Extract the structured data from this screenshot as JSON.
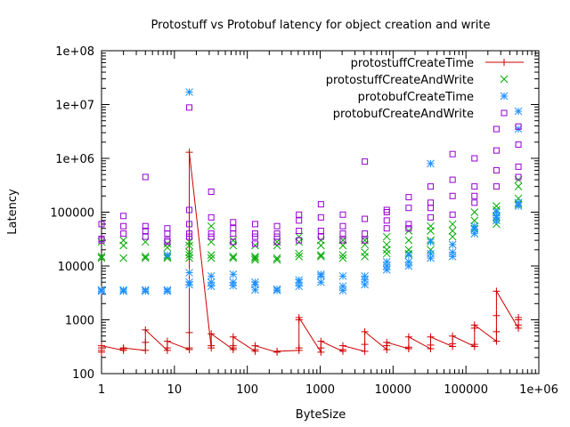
{
  "chart_data": {
    "type": "scatter",
    "title": "Protostuff vs Protobuf latency for object creation and write",
    "xlabel": "ByteSize",
    "ylabel": "Latency",
    "xscale": "log",
    "yscale": "log",
    "xlim": [
      1,
      1000000
    ],
    "ylim": [
      100,
      100000000
    ],
    "grid": false,
    "legend_position": "top-right",
    "x_tick_labels": [
      "1",
      "10",
      "100",
      "1000",
      "10000",
      "100000",
      "1e+06"
    ],
    "y_tick_labels": [
      "100",
      "1000",
      "10000",
      "100000",
      "1e+06",
      "1e+07",
      "1e+08"
    ],
    "series": [
      {
        "name": "protostuffCreateTime",
        "style": "linespoints",
        "marker": "plus",
        "color": "#cc0000",
        "points": [
          [
            1,
            250
          ],
          [
            1,
            270
          ],
          [
            1,
            300
          ],
          [
            1,
            330
          ],
          [
            2,
            270
          ],
          [
            2,
            290
          ],
          [
            2,
            300
          ],
          [
            4,
            270
          ],
          [
            4,
            380
          ],
          [
            4,
            650
          ],
          [
            8,
            270
          ],
          [
            8,
            300
          ],
          [
            8,
            400
          ],
          [
            16,
            280
          ],
          [
            16,
            300
          ],
          [
            16,
            580
          ],
          [
            16,
            1300000
          ],
          [
            32,
            300
          ],
          [
            32,
            330
          ],
          [
            32,
            550
          ],
          [
            64,
            280
          ],
          [
            64,
            300
          ],
          [
            64,
            330
          ],
          [
            64,
            480
          ],
          [
            128,
            260
          ],
          [
            128,
            280
          ],
          [
            128,
            330
          ],
          [
            256,
            250
          ],
          [
            256,
            260
          ],
          [
            512,
            270
          ],
          [
            512,
            300
          ],
          [
            512,
            1000
          ],
          [
            512,
            1100
          ],
          [
            1024,
            250
          ],
          [
            1024,
            300
          ],
          [
            1024,
            400
          ],
          [
            2048,
            260
          ],
          [
            2048,
            280
          ],
          [
            2048,
            330
          ],
          [
            4096,
            260
          ],
          [
            4096,
            350
          ],
          [
            4096,
            600
          ],
          [
            8192,
            280
          ],
          [
            8192,
            330
          ],
          [
            8192,
            380
          ],
          [
            16384,
            290
          ],
          [
            16384,
            310
          ],
          [
            16384,
            480
          ],
          [
            32768,
            290
          ],
          [
            32768,
            340
          ],
          [
            32768,
            480
          ],
          [
            65536,
            320
          ],
          [
            65536,
            360
          ],
          [
            65536,
            500
          ],
          [
            131072,
            320
          ],
          [
            131072,
            350
          ],
          [
            131072,
            700
          ],
          [
            131072,
            800
          ],
          [
            262144,
            400
          ],
          [
            262144,
            600
          ],
          [
            262144,
            1200
          ],
          [
            262144,
            3400
          ],
          [
            524288,
            700
          ],
          [
            524288,
            800
          ],
          [
            524288,
            1000
          ],
          [
            524288,
            1100
          ]
        ]
      },
      {
        "name": "protostuffCreateAndWrite",
        "style": "points",
        "marker": "x",
        "color": "#00aa00",
        "points": [
          [
            1,
            14000
          ],
          [
            1,
            15000
          ],
          [
            1,
            28000
          ],
          [
            2,
            14000
          ],
          [
            2,
            24000
          ],
          [
            2,
            30000
          ],
          [
            4,
            14000
          ],
          [
            4,
            15000
          ],
          [
            4,
            28000
          ],
          [
            8,
            14000
          ],
          [
            8,
            15000
          ],
          [
            8,
            22000
          ],
          [
            8,
            26000
          ],
          [
            16,
            14000
          ],
          [
            16,
            16000
          ],
          [
            16,
            18000
          ],
          [
            16,
            24000
          ],
          [
            16,
            28000
          ],
          [
            32,
            14000
          ],
          [
            32,
            16000
          ],
          [
            32,
            28000
          ],
          [
            32,
            55000
          ],
          [
            64,
            14000
          ],
          [
            64,
            15000
          ],
          [
            64,
            24000
          ],
          [
            64,
            30000
          ],
          [
            128,
            13000
          ],
          [
            128,
            14000
          ],
          [
            128,
            15000
          ],
          [
            128,
            24000
          ],
          [
            256,
            13000
          ],
          [
            256,
            14000
          ],
          [
            256,
            24000
          ],
          [
            256,
            28000
          ],
          [
            512,
            15000
          ],
          [
            512,
            17000
          ],
          [
            512,
            28000
          ],
          [
            512,
            35000
          ],
          [
            1024,
            15000
          ],
          [
            1024,
            16000
          ],
          [
            1024,
            24000
          ],
          [
            1024,
            30000
          ],
          [
            2048,
            14000
          ],
          [
            2048,
            16000
          ],
          [
            2048,
            24000
          ],
          [
            2048,
            30000
          ],
          [
            4096,
            15000
          ],
          [
            4096,
            18000
          ],
          [
            4096,
            25000
          ],
          [
            4096,
            30000
          ],
          [
            8192,
            17000
          ],
          [
            8192,
            20000
          ],
          [
            8192,
            25000
          ],
          [
            8192,
            35000
          ],
          [
            16384,
            17000
          ],
          [
            16384,
            20000
          ],
          [
            16384,
            30000
          ],
          [
            16384,
            45000
          ],
          [
            32768,
            20000
          ],
          [
            32768,
            30000
          ],
          [
            32768,
            45000
          ],
          [
            32768,
            55000
          ],
          [
            65536,
            25000
          ],
          [
            65536,
            35000
          ],
          [
            65536,
            45000
          ],
          [
            65536,
            60000
          ],
          [
            131072,
            40000
          ],
          [
            131072,
            50000
          ],
          [
            131072,
            70000
          ],
          [
            131072,
            100000
          ],
          [
            262144,
            60000
          ],
          [
            262144,
            80000
          ],
          [
            262144,
            110000
          ],
          [
            262144,
            130000
          ],
          [
            524288,
            140000
          ],
          [
            524288,
            180000
          ],
          [
            524288,
            300000
          ],
          [
            524288,
            400000
          ]
        ]
      },
      {
        "name": "protobufCreateTime",
        "style": "points",
        "marker": "star",
        "color": "#1e90ff",
        "points": [
          [
            1,
            3400
          ],
          [
            1,
            3600
          ],
          [
            2,
            3400
          ],
          [
            2,
            3600
          ],
          [
            4,
            3400
          ],
          [
            4,
            3600
          ],
          [
            8,
            3400
          ],
          [
            8,
            3600
          ],
          [
            8,
            16000
          ],
          [
            16,
            4500
          ],
          [
            16,
            5000
          ],
          [
            16,
            7500
          ],
          [
            16,
            17000000
          ],
          [
            32,
            4200
          ],
          [
            32,
            5000
          ],
          [
            32,
            6500
          ],
          [
            64,
            4300
          ],
          [
            64,
            5000
          ],
          [
            64,
            7000
          ],
          [
            128,
            3600
          ],
          [
            128,
            4500
          ],
          [
            128,
            5000
          ],
          [
            256,
            3500
          ],
          [
            256,
            3700
          ],
          [
            512,
            4200
          ],
          [
            512,
            5000
          ],
          [
            512,
            5500
          ],
          [
            1024,
            5000
          ],
          [
            1024,
            6500
          ],
          [
            1024,
            7000
          ],
          [
            2048,
            3500
          ],
          [
            2048,
            4200
          ],
          [
            2048,
            6500
          ],
          [
            4096,
            4500
          ],
          [
            4096,
            5500
          ],
          [
            4096,
            6500
          ],
          [
            8192,
            8500
          ],
          [
            8192,
            10000
          ],
          [
            8192,
            12000
          ],
          [
            16384,
            10000
          ],
          [
            16384,
            12000
          ],
          [
            16384,
            16000
          ],
          [
            32768,
            14000
          ],
          [
            32768,
            17000
          ],
          [
            32768,
            28000
          ],
          [
            32768,
            800000
          ],
          [
            65536,
            15000
          ],
          [
            65536,
            18000
          ],
          [
            65536,
            25000
          ],
          [
            131072,
            40000
          ],
          [
            131072,
            48000
          ],
          [
            131072,
            55000
          ],
          [
            262144,
            70000
          ],
          [
            262144,
            85000
          ],
          [
            262144,
            100000
          ],
          [
            524288,
            130000
          ],
          [
            524288,
            150000
          ],
          [
            524288,
            3500000
          ],
          [
            524288,
            7500000
          ]
        ]
      },
      {
        "name": "protobufCreateAndWrite",
        "style": "points",
        "marker": "square",
        "color": "#9400d3",
        "points": [
          [
            1,
            30000
          ],
          [
            1,
            32000
          ],
          [
            1,
            60000
          ],
          [
            2,
            40000
          ],
          [
            2,
            55000
          ],
          [
            2,
            85000
          ],
          [
            4,
            35000
          ],
          [
            4,
            45000
          ],
          [
            4,
            55000
          ],
          [
            4,
            450000
          ],
          [
            8,
            28000
          ],
          [
            8,
            30000
          ],
          [
            8,
            40000
          ],
          [
            8,
            50000
          ],
          [
            16,
            35000
          ],
          [
            16,
            40000
          ],
          [
            16,
            60000
          ],
          [
            16,
            110000
          ],
          [
            16,
            8800000
          ],
          [
            32,
            35000
          ],
          [
            32,
            40000
          ],
          [
            32,
            80000
          ],
          [
            32,
            240000
          ],
          [
            64,
            28000
          ],
          [
            64,
            40000
          ],
          [
            64,
            50000
          ],
          [
            64,
            65000
          ],
          [
            128,
            26000
          ],
          [
            128,
            35000
          ],
          [
            128,
            40000
          ],
          [
            128,
            60000
          ],
          [
            256,
            28000
          ],
          [
            256,
            35000
          ],
          [
            256,
            40000
          ],
          [
            256,
            55000
          ],
          [
            512,
            30000
          ],
          [
            512,
            45000
          ],
          [
            512,
            70000
          ],
          [
            512,
            90000
          ],
          [
            1024,
            35000
          ],
          [
            1024,
            45000
          ],
          [
            1024,
            80000
          ],
          [
            1024,
            140000
          ],
          [
            2048,
            30000
          ],
          [
            2048,
            40000
          ],
          [
            2048,
            55000
          ],
          [
            2048,
            90000
          ],
          [
            4096,
            30000
          ],
          [
            4096,
            40000
          ],
          [
            4096,
            75000
          ],
          [
            4096,
            870000
          ],
          [
            8192,
            50000
          ],
          [
            8192,
            70000
          ],
          [
            8192,
            100000
          ],
          [
            8192,
            110000
          ],
          [
            16384,
            50000
          ],
          [
            16384,
            60000
          ],
          [
            16384,
            120000
          ],
          [
            16384,
            190000
          ],
          [
            32768,
            80000
          ],
          [
            32768,
            120000
          ],
          [
            32768,
            150000
          ],
          [
            32768,
            300000
          ],
          [
            65536,
            90000
          ],
          [
            65536,
            200000
          ],
          [
            65536,
            400000
          ],
          [
            65536,
            1200000
          ],
          [
            131072,
            150000
          ],
          [
            131072,
            200000
          ],
          [
            131072,
            300000
          ],
          [
            131072,
            1000000
          ],
          [
            262144,
            300000
          ],
          [
            262144,
            600000
          ],
          [
            262144,
            1400000
          ],
          [
            262144,
            3500000
          ],
          [
            524288,
            450000
          ],
          [
            524288,
            700000
          ],
          [
            524288,
            1800000
          ],
          [
            524288,
            3900000
          ]
        ]
      }
    ]
  }
}
